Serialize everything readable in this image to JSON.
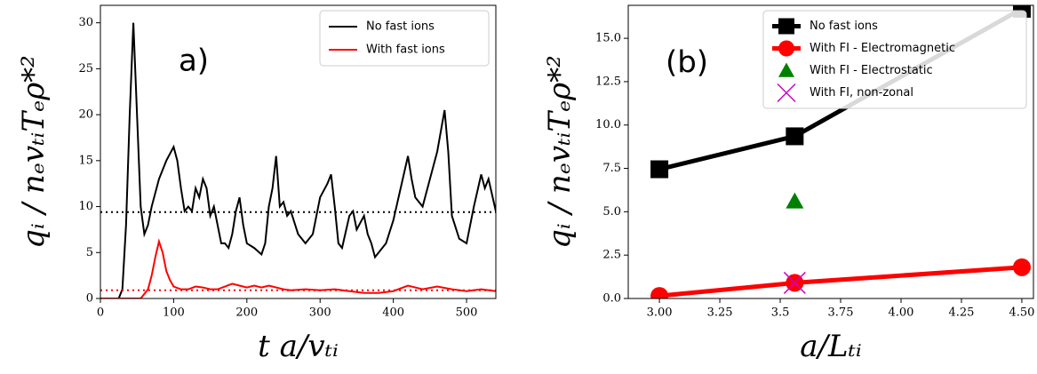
{
  "chart_data": [
    {
      "type": "line",
      "annotation": "a)",
      "xlabel": "t a/vₜᵢ",
      "ylabel": "qᵢ / nₑvₜᵢTₑρ*²",
      "xlim": [
        0,
        540
      ],
      "ylim": [
        0,
        31.9
      ],
      "xticks": [
        0,
        100,
        200,
        300,
        400,
        500
      ],
      "yticks": [
        0,
        5,
        10,
        15,
        20,
        25,
        30
      ],
      "legend": "upper right",
      "series": [
        {
          "name": "No fast ions",
          "color": "#000000",
          "mean": 9.4,
          "x": [
            0,
            25,
            30,
            35,
            40,
            45,
            50,
            55,
            60,
            65,
            70,
            80,
            90,
            100,
            105,
            110,
            115,
            120,
            125,
            130,
            135,
            140,
            145,
            150,
            155,
            160,
            165,
            170,
            175,
            180,
            185,
            190,
            195,
            200,
            210,
            220,
            225,
            230,
            235,
            240,
            245,
            250,
            255,
            260,
            270,
            280,
            290,
            300,
            310,
            315,
            320,
            325,
            330,
            340,
            345,
            350,
            360,
            365,
            370,
            375,
            380,
            390,
            400,
            410,
            420,
            425,
            430,
            440,
            450,
            460,
            470,
            475,
            480,
            490,
            500,
            510,
            520,
            525,
            530,
            540
          ],
          "values": [
            0,
            0,
            1,
            8,
            20,
            30,
            20,
            10,
            7,
            8,
            10,
            13,
            15,
            16.5,
            15,
            12,
            9.5,
            10,
            9.5,
            12,
            11,
            13,
            12,
            9,
            10,
            8,
            6,
            6,
            5.5,
            7,
            9.5,
            11,
            8,
            6,
            5.5,
            4.8,
            6,
            10,
            12,
            15.5,
            10,
            10.5,
            9,
            9.5,
            7,
            6,
            7,
            11,
            12.5,
            13.5,
            10,
            6,
            5.5,
            9,
            9.5,
            7.5,
            9,
            7,
            6,
            4.5,
            5,
            6,
            8.5,
            12,
            15.5,
            13,
            11,
            10,
            13,
            16,
            20.5,
            16,
            9,
            6.5,
            6,
            10,
            13.5,
            12,
            13,
            9.5
          ]
        },
        {
          "name": "With fast ions",
          "color": "#ff0000",
          "mean": 0.9,
          "x": [
            0,
            55,
            60,
            65,
            70,
            75,
            80,
            85,
            90,
            95,
            100,
            110,
            120,
            130,
            140,
            150,
            160,
            170,
            180,
            190,
            200,
            210,
            220,
            230,
            240,
            250,
            260,
            280,
            300,
            320,
            340,
            360,
            380,
            400,
            420,
            430,
            440,
            460,
            480,
            500,
            520,
            540
          ],
          "values": [
            0,
            0,
            0.5,
            1,
            2.5,
            4.5,
            6.2,
            5,
            3,
            2,
            1.3,
            1,
            1,
            1.3,
            1.2,
            1,
            1,
            1.3,
            1.6,
            1.4,
            1.2,
            1.4,
            1.2,
            1.4,
            1.2,
            1,
            0.9,
            1,
            0.9,
            1,
            0.8,
            0.6,
            0.6,
            0.8,
            1.4,
            1.2,
            1,
            1.3,
            1,
            0.8,
            1,
            0.8
          ]
        }
      ]
    },
    {
      "type": "line",
      "annotation": "(b)",
      "xlabel": "a/Lₜᵢ",
      "ylabel": "qᵢ / nₑvₜᵢTₑρ*²",
      "xlim": [
        2.871,
        4.548
      ],
      "ylim": [
        0,
        16.9
      ],
      "xticks": [
        {
          "value": 3,
          "label": "3.00"
        },
        3.25,
        3.5,
        3.75,
        {
          "value": 4,
          "label": "4.00"
        },
        4.25,
        {
          "value": 4.5,
          "label": "4.50"
        }
      ],
      "yticks": [
        {
          "value": 0,
          "label": "0.0"
        },
        2.5,
        {
          "value": 5,
          "label": "5.0"
        },
        7.5,
        {
          "value": 10,
          "label": "10.0"
        },
        12.5,
        {
          "value": 15,
          "label": "15.0"
        }
      ],
      "legend": "upper right",
      "series": [
        {
          "name": "No fast ions",
          "color": "#000000",
          "marker": "square",
          "x": [
            3.0,
            3.56,
            4.5
          ],
          "values": [
            7.45,
            9.35,
            16.7
          ]
        },
        {
          "name": "With FI - Electromagnetic",
          "color": "#ff0000",
          "marker": "circle",
          "x": [
            3.0,
            3.56,
            4.5
          ],
          "values": [
            0.15,
            0.9,
            1.8
          ]
        },
        {
          "name": "With FI - Electrostatic",
          "color": "#008000",
          "marker": "triangle",
          "x": [
            3.56
          ],
          "values": [
            5.6
          ]
        },
        {
          "name": "With FI, non-zonal",
          "color": "#cc00cc",
          "marker": "x",
          "x": [
            3.56
          ],
          "values": [
            0.9
          ]
        }
      ]
    }
  ]
}
